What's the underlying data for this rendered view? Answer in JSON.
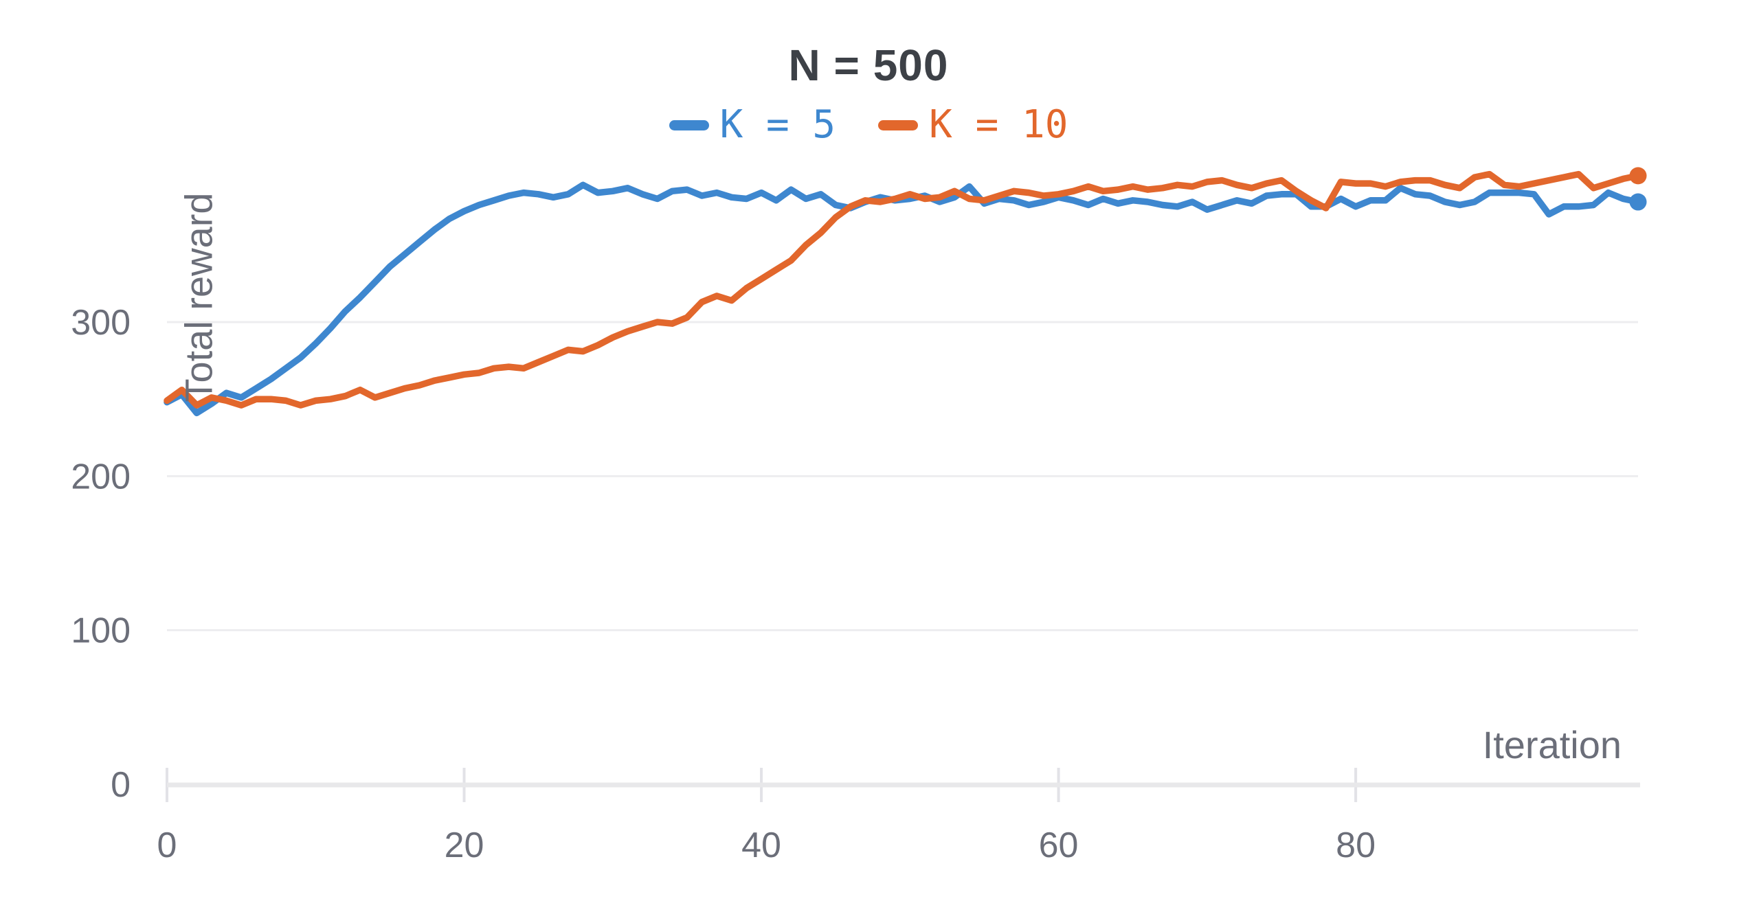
{
  "title": "N = 500",
  "legend": [
    {
      "label": "K = 5",
      "color": "#3e87cf"
    },
    {
      "label": "K = 10",
      "color": "#e2672c"
    }
  ],
  "axes": {
    "x": {
      "label": "Iteration",
      "ticks": [
        0,
        20,
        40,
        60,
        80
      ],
      "range": [
        0,
        99
      ]
    },
    "y": {
      "label": "Total reward",
      "ticks": [
        0,
        100,
        200,
        300
      ],
      "range": [
        0,
        400
      ]
    }
  },
  "colors": {
    "blue_line": "#3e87cf",
    "orange_line": "#e2672c",
    "grid_line": "#ededef",
    "axis_line": "#e8e8ea",
    "tick_mark": "#e2e2e7",
    "tick_text": "#6b6e79",
    "title_text": "#3d4147"
  },
  "chart_data": {
    "type": "line",
    "title": "N = 500",
    "xlabel": "Iteration",
    "ylabel": "Total reward",
    "x_start": 0,
    "x_step": 1,
    "n_points": 100,
    "xlim": [
      0,
      99
    ],
    "ylim": [
      0,
      400
    ],
    "x_ticks": [
      0,
      20,
      40,
      60,
      80
    ],
    "y_ticks": [
      0,
      100,
      200,
      300
    ],
    "grid": "horizontal-only",
    "legend_position": "top-center",
    "end_point_markers": true,
    "series": [
      {
        "name": "K = 5",
        "color": "#3e87cf",
        "values": [
          248,
          253,
          241,
          247,
          254,
          251,
          257,
          263,
          270,
          277,
          286,
          296,
          307,
          316,
          326,
          336,
          344,
          352,
          360,
          367,
          372,
          376,
          379,
          382,
          384,
          383,
          381,
          383,
          389,
          384,
          385,
          387,
          383,
          380,
          385,
          386,
          382,
          384,
          381,
          380,
          384,
          379,
          386,
          380,
          383,
          376,
          374,
          378,
          381,
          379,
          380,
          382,
          378,
          381,
          388,
          377,
          380,
          379,
          376,
          378,
          381,
          379,
          376,
          380,
          377,
          379,
          378,
          376,
          375,
          378,
          373,
          376,
          379,
          377,
          382,
          383,
          383,
          375,
          375,
          380,
          375,
          379,
          379,
          387,
          383,
          382,
          378,
          376,
          378,
          384,
          384,
          384,
          383,
          370,
          375,
          375,
          376,
          384,
          380,
          378
        ]
      },
      {
        "name": "K = 10",
        "color": "#e2672c",
        "values": [
          249,
          256,
          246,
          251,
          249,
          246,
          250,
          250,
          249,
          246,
          249,
          250,
          252,
          256,
          251,
          254,
          257,
          259,
          262,
          264,
          266,
          267,
          270,
          271,
          270,
          274,
          278,
          282,
          281,
          285,
          290,
          294,
          297,
          300,
          299,
          303,
          313,
          317,
          314,
          322,
          328,
          334,
          340,
          350,
          358,
          368,
          375,
          379,
          378,
          380,
          383,
          380,
          381,
          385,
          380,
          379,
          382,
          385,
          384,
          382,
          383,
          385,
          388,
          385,
          386,
          388,
          386,
          387,
          389,
          388,
          391,
          392,
          389,
          387,
          390,
          392,
          385,
          379,
          374,
          391,
          390,
          390,
          388,
          391,
          392,
          392,
          389,
          387,
          394,
          396,
          389,
          388,
          390,
          392,
          394,
          396,
          387,
          390,
          393,
          395
        ]
      }
    ]
  }
}
